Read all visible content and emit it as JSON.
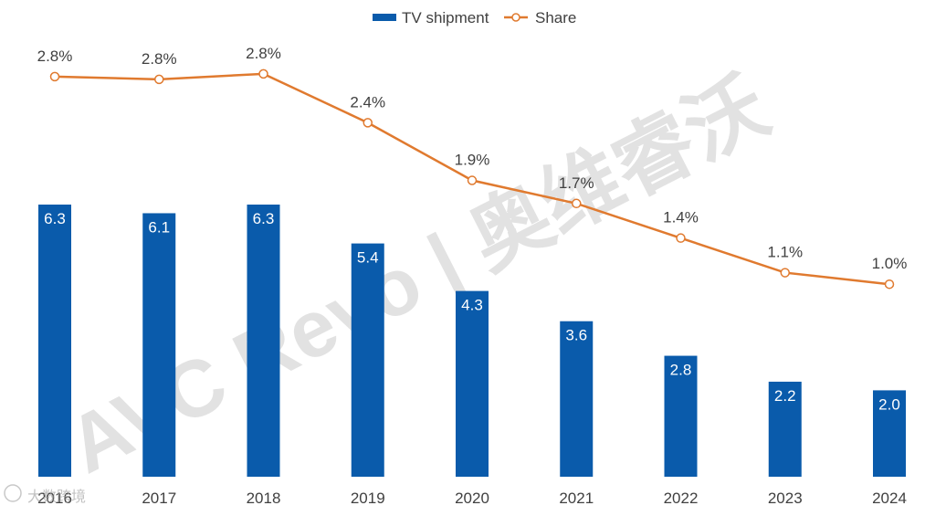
{
  "chart_data": {
    "type": "bar+line",
    "categories": [
      "2016",
      "2017",
      "2018",
      "2019",
      "2020",
      "2021",
      "2022",
      "2023",
      "2024"
    ],
    "series": [
      {
        "name": "TV shipment",
        "type": "bar",
        "color": "#0a5bab",
        "values": [
          6.3,
          6.1,
          6.3,
          5.4,
          4.3,
          3.6,
          2.8,
          2.2,
          2.0
        ],
        "labels": [
          "6.3",
          "6.1",
          "6.3",
          "5.4",
          "4.3",
          "3.6",
          "2.8",
          "2.2",
          "2.0"
        ]
      },
      {
        "name": "Share",
        "type": "line",
        "color": "#e07a2f",
        "values": [
          2.8,
          2.8,
          2.8,
          2.4,
          1.9,
          1.7,
          1.4,
          1.1,
          1.0
        ],
        "labels": [
          "2.8%",
          "2.8%",
          "2.8%",
          "2.4%",
          "1.9%",
          "1.7%",
          "1.4%",
          "1.1%",
          "1.0%"
        ]
      }
    ],
    "legend_position": "top-center",
    "grid": false,
    "watermark": "AVC Revo | 奥维睿沃",
    "corner_mark": "大数跨境"
  }
}
